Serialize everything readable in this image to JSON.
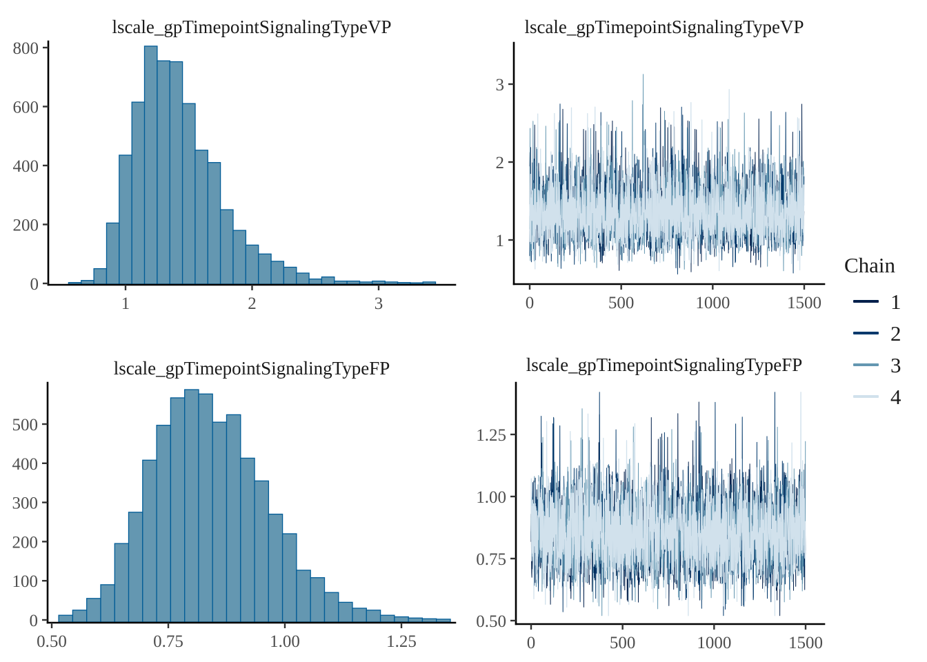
{
  "figure": {
    "background": "#ffffff",
    "title_color": "#1a1a1a",
    "tick_label_color": "#4d4d4d",
    "axis_color": "#000000"
  },
  "legend": {
    "title": "Chain",
    "items": [
      {
        "label": "1",
        "color": "#011f4b"
      },
      {
        "label": "2",
        "color": "#03396c"
      },
      {
        "label": "3",
        "color": "#6497b1"
      },
      {
        "label": "4",
        "color": "#d1e1ec"
      }
    ]
  },
  "chart_data": [
    {
      "id": "hist_vp",
      "type": "histogram",
      "title": "lscale_gpTimepointSignalingTypeVP",
      "bar_fill": "#6497b1",
      "bar_stroke": "#005b96",
      "bin_start": 0.55,
      "bin_width": 0.1,
      "counts": [
        3,
        10,
        50,
        205,
        435,
        615,
        805,
        755,
        752,
        610,
        452,
        410,
        250,
        180,
        130,
        100,
        75,
        55,
        35,
        15,
        22,
        8,
        8,
        5,
        8,
        5,
        3,
        2,
        5
      ],
      "x_ticks": [
        1,
        2,
        3
      ],
      "x_tick_labels": [
        "1",
        "2",
        "3"
      ],
      "y_ticks": [
        0,
        200,
        400,
        600,
        800
      ],
      "y_tick_labels": [
        "0",
        "200",
        "400",
        "600",
        "800"
      ],
      "xlim": [
        0.5,
        3.55
      ],
      "ylim": [
        0,
        830
      ],
      "grid": false
    },
    {
      "id": "trace_vp",
      "type": "trace",
      "title": "lscale_gpTimepointSignalingTypeVP",
      "n_iterations": 1500,
      "n_chains": 4,
      "x_ticks": [
        0,
        500,
        1000,
        1500
      ],
      "x_tick_labels": [
        "0",
        "500",
        "1000",
        "1500"
      ],
      "y_ticks": [
        1,
        2,
        3
      ],
      "y_tick_labels": [
        "1",
        "2",
        "3"
      ],
      "xlim": [
        0,
        1500
      ],
      "ylim": [
        0.45,
        3.45
      ],
      "sim": {
        "center": 1.32,
        "sigma": 0.225,
        "min": 0.53,
        "max": 3.4,
        "seed": 11
      },
      "grid": false
    },
    {
      "id": "hist_fp",
      "type": "histogram",
      "title": "lscale_gpTimepointSignalingTypeFP",
      "bar_fill": "#6497b1",
      "bar_stroke": "#005b96",
      "bin_start": 0.515,
      "bin_width": 0.03,
      "counts": [
        12,
        25,
        55,
        90,
        195,
        275,
        408,
        497,
        567,
        588,
        577,
        505,
        524,
        413,
        355,
        270,
        220,
        127,
        108,
        70,
        45,
        30,
        25,
        12,
        8,
        5,
        3,
        2
      ],
      "x_ticks": [
        0.5,
        0.75,
        1.0,
        1.25
      ],
      "x_tick_labels": [
        "0.50",
        "0.75",
        "1.00",
        "1.25"
      ],
      "y_ticks": [
        0,
        100,
        200,
        300,
        400,
        500
      ],
      "y_tick_labels": [
        "0",
        "100",
        "200",
        "300",
        "400",
        "500"
      ],
      "xlim": [
        0.48,
        1.47
      ],
      "ylim": [
        0,
        610
      ],
      "grid": false
    },
    {
      "id": "trace_fp",
      "type": "trace",
      "title": "lscale_gpTimepointSignalingTypeFP",
      "n_iterations": 1500,
      "n_chains": 4,
      "x_ticks": [
        0,
        500,
        1000,
        1500
      ],
      "x_tick_labels": [
        "0",
        "500",
        "1000",
        "1500"
      ],
      "y_ticks": [
        0.5,
        0.75,
        1.0,
        1.25
      ],
      "y_tick_labels": [
        "0.50",
        "0.75",
        "1.00",
        "1.25"
      ],
      "xlim": [
        0,
        1500
      ],
      "ylim": [
        0.48,
        1.45
      ],
      "sim": {
        "center": 0.845,
        "sigma": 0.138,
        "min": 0.52,
        "max": 1.42,
        "seed": 77
      },
      "grid": false
    }
  ]
}
